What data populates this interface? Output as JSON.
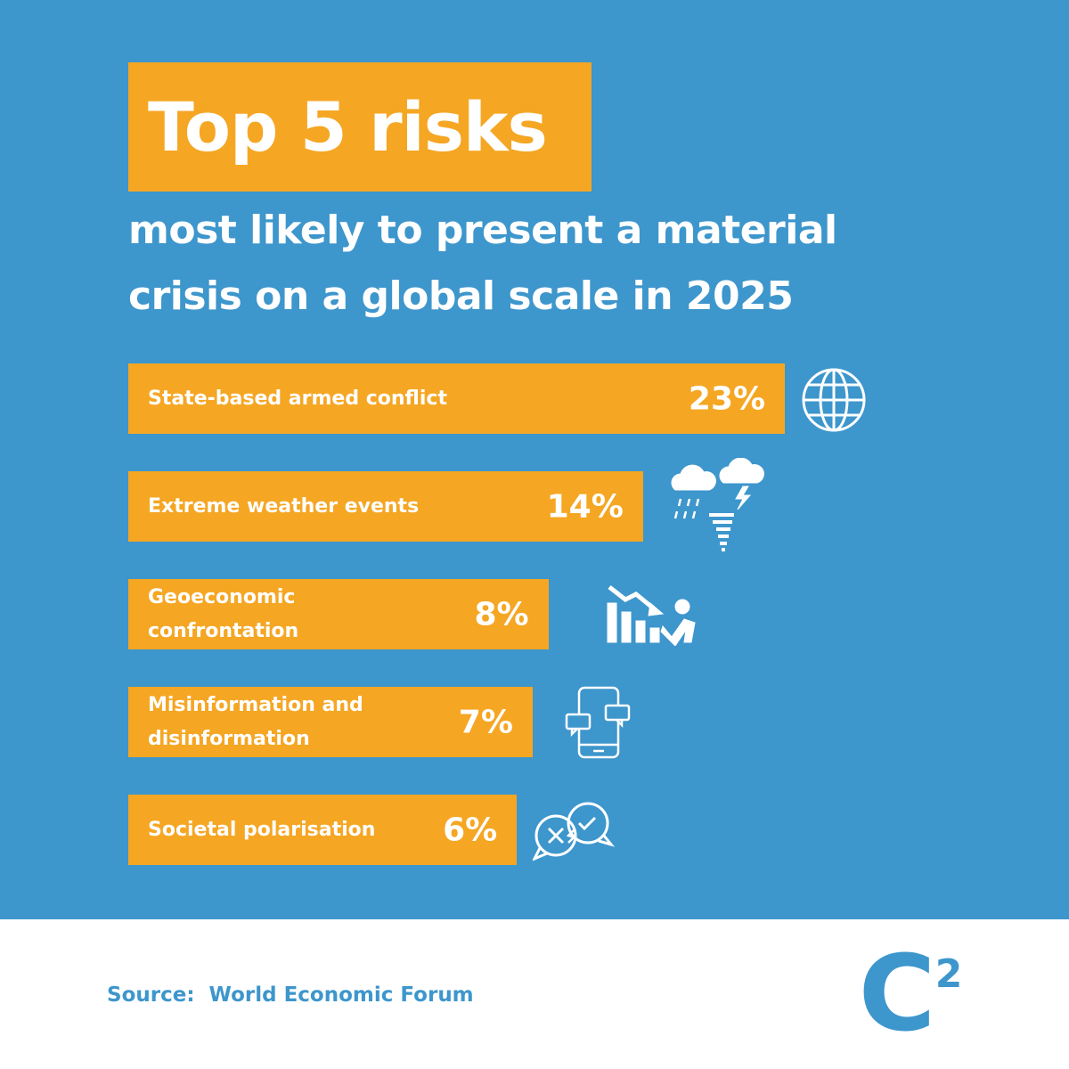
{
  "chart_data": {
    "type": "bar",
    "orientation": "horizontal",
    "title": "Top 5 risks",
    "subtitle": "most likely to present a material crisis on a global scale in 2025",
    "categories": [
      "State-based armed conflict",
      "Extreme weather events",
      "Geoeconomic confrontation",
      "Misinformation and disinformation",
      "Societal polarisation"
    ],
    "values": [
      23,
      14,
      8,
      7,
      6
    ],
    "value_labels": [
      "23%",
      "14%",
      "8%",
      "7%",
      "6%"
    ],
    "color": "#f5a623",
    "source": "Source:  World Economic Forum"
  },
  "logo": {
    "letter": "C",
    "superscript": "2"
  }
}
